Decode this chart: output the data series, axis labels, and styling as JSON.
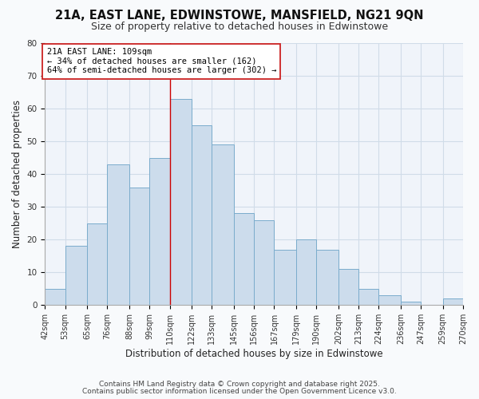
{
  "title": "21A, EAST LANE, EDWINSTOWE, MANSFIELD, NG21 9QN",
  "subtitle": "Size of property relative to detached houses in Edwinstowe",
  "xlabel": "Distribution of detached houses by size in Edwinstowe",
  "ylabel": "Number of detached properties",
  "bins": [
    42,
    53,
    65,
    76,
    88,
    99,
    110,
    122,
    133,
    145,
    156,
    167,
    179,
    190,
    202,
    213,
    224,
    236,
    247,
    259,
    270
  ],
  "counts": [
    5,
    18,
    25,
    43,
    36,
    45,
    63,
    55,
    49,
    28,
    26,
    17,
    20,
    17,
    11,
    5,
    3,
    1,
    0,
    2
  ],
  "bar_facecolor": "#ccdcec",
  "bar_edgecolor": "#7aaccc",
  "vline_x": 110,
  "vline_color": "#cc0000",
  "annotation_title": "21A EAST LANE: 109sqm",
  "annotation_line1": "← 34% of detached houses are smaller (162)",
  "annotation_line2": "64% of semi-detached houses are larger (302) →",
  "ylim": [
    0,
    80
  ],
  "yticks": [
    0,
    10,
    20,
    30,
    40,
    50,
    60,
    70,
    80
  ],
  "tick_labels": [
    "42sqm",
    "53sqm",
    "65sqm",
    "76sqm",
    "88sqm",
    "99sqm",
    "110sqm",
    "122sqm",
    "133sqm",
    "145sqm",
    "156sqm",
    "167sqm",
    "179sqm",
    "190sqm",
    "202sqm",
    "213sqm",
    "224sqm",
    "236sqm",
    "247sqm",
    "259sqm",
    "270sqm"
  ],
  "footnote1": "Contains HM Land Registry data © Crown copyright and database right 2025.",
  "footnote2": "Contains public sector information licensed under the Open Government Licence v3.0.",
  "bg_color": "#f8fafc",
  "plot_bg_color": "#f0f4fa",
  "grid_color": "#d0dce8",
  "title_fontsize": 10.5,
  "subtitle_fontsize": 9,
  "axis_label_fontsize": 8.5,
  "tick_fontsize": 7,
  "annotation_fontsize": 7.5,
  "footnote_fontsize": 6.5
}
